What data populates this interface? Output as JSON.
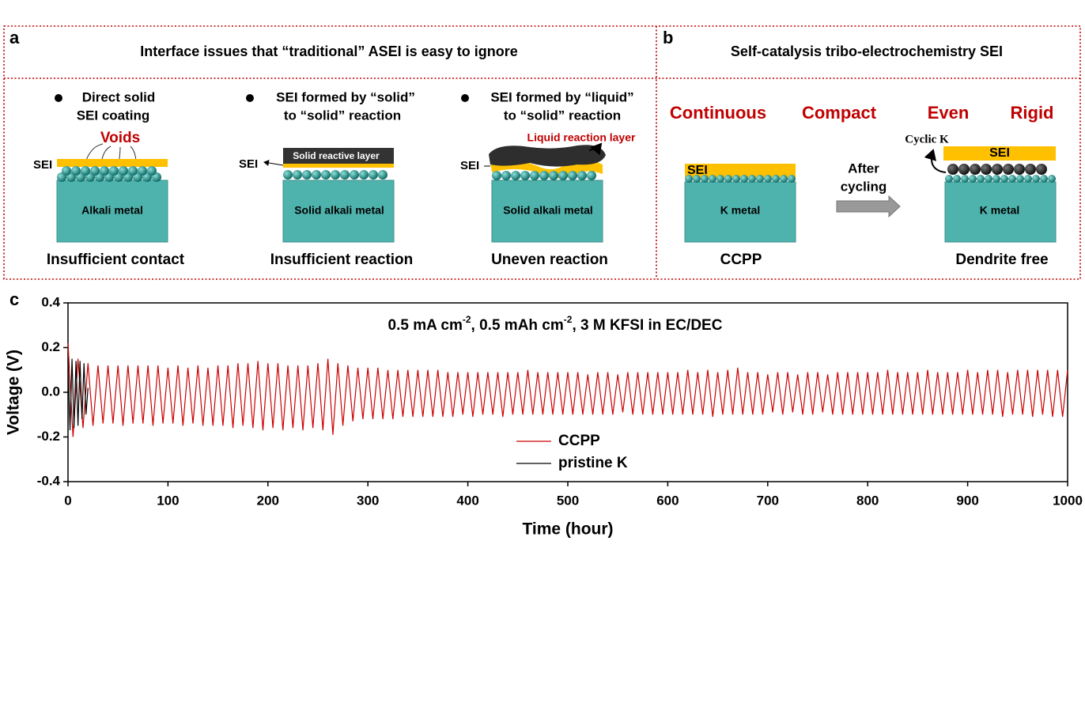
{
  "panel_a": {
    "label": "a",
    "title": "Interface issues that “traditional” ASEI is easy to ignore",
    "columns": [
      {
        "bullet": [
          "Direct solid",
          "SEI coating"
        ],
        "voids": "Voids",
        "sei": "SEI",
        "base": "Alkali metal",
        "caption": "Insufficient contact"
      },
      {
        "bullet": [
          "SEI formed by “solid”",
          "to “solid” reaction"
        ],
        "layer": "Solid reactive layer",
        "sei": "SEI",
        "base": "Solid alkali metal",
        "caption": "Insufficient reaction"
      },
      {
        "bullet": [
          "SEI formed by “liquid”",
          "to “solid” reaction"
        ],
        "layer": "Liquid reaction layer",
        "sei": "SEI",
        "base": "Solid alkali metal",
        "caption": "Uneven reaction"
      }
    ]
  },
  "panel_b": {
    "label": "b",
    "title": "Self-catalysis tribo-electrochemistry SEI",
    "properties": [
      "Continuous",
      "Compact",
      "Even",
      "Rigid"
    ],
    "before": {
      "sei": "SEI",
      "base": "K metal",
      "caption": "CCPP"
    },
    "arrow": [
      "After",
      "cycling"
    ],
    "after": {
      "cyclic": "Cyclic K",
      "sei": "SEI",
      "base": "K metal",
      "caption": "Dendrite free"
    }
  },
  "chart_data": {
    "type": "line",
    "label": "c",
    "annotation": [
      "0.5 mA cm",
      "-2",
      ", 0.5 mAh cm",
      "-2",
      ", 3 M KFSI in EC/DEC"
    ],
    "x_label": "Time (hour)",
    "y_label": "Voltage (V)",
    "xlim": [
      0,
      1000
    ],
    "xticks": [
      0,
      100,
      200,
      300,
      400,
      500,
      600,
      700,
      800,
      900,
      1000
    ],
    "ylim": [
      -0.4,
      0.4
    ],
    "yticks": [
      -0.4,
      -0.2,
      {
        "value": 0,
        "label": "0.0"
      },
      0.2,
      0.4
    ],
    "series": [
      {
        "name": "CCPP",
        "color": "#cc0000",
        "x": [
          0,
          5,
          10,
          15,
          20,
          25,
          30,
          35,
          40,
          45,
          50,
          55,
          60,
          65,
          70,
          75,
          80,
          85,
          90,
          95,
          100,
          105,
          110,
          115,
          120,
          125,
          130,
          135,
          140,
          145,
          150,
          155,
          160,
          165,
          170,
          175,
          180,
          185,
          190,
          195,
          200,
          205,
          210,
          215,
          220,
          225,
          230,
          235,
          240,
          245,
          250,
          255,
          260,
          265,
          270,
          275,
          280,
          285,
          290,
          295,
          300,
          305,
          310,
          315,
          320,
          325,
          330,
          335,
          340,
          345,
          350,
          355,
          360,
          365,
          370,
          375,
          380,
          385,
          390,
          395,
          400,
          405,
          410,
          415,
          420,
          425,
          430,
          435,
          440,
          445,
          450,
          455,
          460,
          465,
          470,
          475,
          480,
          485,
          490,
          495,
          500,
          505,
          510,
          515,
          520,
          525,
          530,
          535,
          540,
          545,
          550,
          555,
          560,
          565,
          570,
          575,
          580,
          585,
          590,
          595,
          600,
          605,
          610,
          615,
          620,
          625,
          630,
          635,
          640,
          645,
          650,
          655,
          660,
          665,
          670,
          675,
          680,
          685,
          690,
          695,
          700,
          705,
          710,
          715,
          720,
          725,
          730,
          735,
          740,
          745,
          750,
          755,
          760,
          765,
          770,
          775,
          780,
          785,
          790,
          795,
          800,
          805,
          810,
          815,
          820,
          825,
          830,
          835,
          840,
          845,
          850,
          855,
          860,
          865,
          870,
          875,
          880,
          885,
          890,
          895,
          900,
          905,
          910,
          915,
          920,
          925,
          930,
          935,
          940,
          945,
          950,
          955,
          960,
          965,
          970,
          975,
          980,
          985,
          990,
          995,
          1000
        ],
        "values": [
          0.22,
          -0.2,
          0.15,
          -0.16,
          0.13,
          -0.15,
          0.12,
          -0.14,
          0.12,
          -0.14,
          0.12,
          -0.15,
          0.12,
          -0.14,
          0.12,
          -0.14,
          0.12,
          -0.15,
          0.12,
          -0.14,
          0.11,
          -0.14,
          0.12,
          -0.15,
          0.11,
          -0.14,
          0.12,
          -0.15,
          0.11,
          -0.15,
          0.12,
          -0.15,
          0.12,
          -0.16,
          0.13,
          -0.15,
          0.13,
          -0.16,
          0.14,
          -0.17,
          0.13,
          -0.16,
          0.13,
          -0.17,
          0.12,
          -0.16,
          0.12,
          -0.17,
          0.12,
          -0.16,
          0.13,
          -0.17,
          0.15,
          -0.19,
          0.13,
          -0.15,
          0.12,
          -0.13,
          0.11,
          -0.12,
          0.11,
          -0.12,
          0.11,
          -0.12,
          0.1,
          -0.12,
          0.1,
          -0.11,
          0.1,
          -0.11,
          0.1,
          -0.11,
          0.1,
          -0.11,
          0.1,
          -0.11,
          0.09,
          -0.11,
          0.09,
          -0.1,
          0.09,
          -0.11,
          0.09,
          -0.1,
          0.09,
          -0.1,
          0.09,
          -0.11,
          0.09,
          -0.1,
          0.09,
          -0.1,
          0.1,
          -0.1,
          0.09,
          -0.1,
          0.09,
          -0.1,
          0.09,
          -0.1,
          0.09,
          -0.1,
          0.09,
          -0.1,
          0.08,
          -0.1,
          0.09,
          -0.1,
          0.09,
          -0.1,
          0.08,
          -0.09,
          0.09,
          -0.1,
          0.09,
          -0.1,
          0.09,
          -0.1,
          0.09,
          -0.1,
          0.09,
          -0.1,
          0.09,
          -0.1,
          0.1,
          -0.1,
          0.09,
          -0.1,
          0.1,
          -0.11,
          0.09,
          -0.1,
          0.1,
          -0.1,
          0.11,
          -0.1,
          0.09,
          -0.1,
          0.09,
          -0.1,
          0.08,
          -0.09,
          0.09,
          -0.1,
          0.09,
          -0.09,
          0.08,
          -0.1,
          0.09,
          -0.1,
          0.09,
          -0.09,
          0.08,
          -0.1,
          0.09,
          -0.1,
          0.09,
          -0.1,
          0.09,
          -0.1,
          0.09,
          -0.1,
          0.09,
          -0.1,
          0.1,
          -0.1,
          0.09,
          -0.1,
          0.09,
          -0.1,
          0.09,
          -0.1,
          0.1,
          -0.1,
          0.09,
          -0.1,
          0.09,
          -0.1,
          0.09,
          -0.1,
          0.1,
          -0.1,
          0.09,
          -0.1,
          0.1,
          -0.1,
          0.1,
          -0.11,
          0.09,
          -0.1,
          0.1,
          -0.1,
          0.1,
          -0.11,
          0.1,
          -0.1,
          0.1,
          -0.11,
          0.1,
          -0.11,
          0.1
        ]
      },
      {
        "name": "pristine K",
        "color": "#000000",
        "x": [
          0,
          2,
          4,
          6,
          8,
          10,
          12,
          14,
          16,
          18,
          20
        ],
        "values": [
          0.15,
          -0.17,
          0.15,
          -0.16,
          0.14,
          -0.15,
          0.14,
          -0.12,
          0.13,
          -0.1,
          0.02
        ]
      }
    ]
  }
}
